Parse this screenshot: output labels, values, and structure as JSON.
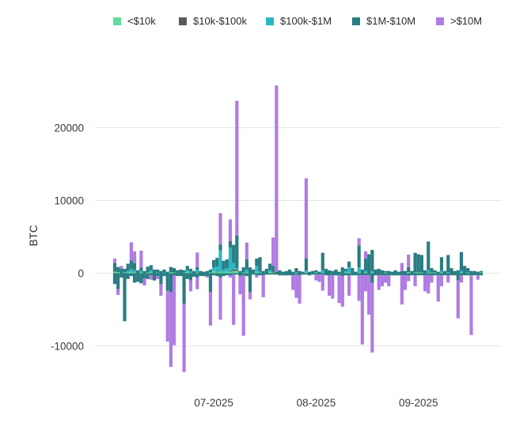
{
  "chart_data": {
    "type": "bar",
    "stacked": true,
    "title": "",
    "xlabel": "",
    "ylabel": "BTC",
    "ylim": [
      -15000,
      26000
    ],
    "y_ticks": [
      -10000,
      0,
      10000,
      20000
    ],
    "x_tick_labels": [
      "07-2025",
      "08-2025",
      "09-2025"
    ],
    "grid": "horizontal",
    "legend_position": "top",
    "series": [
      {
        "name": "<$10k",
        "color": "#5fdc9e"
      },
      {
        "name": "$10k-$100k",
        "color": "#5a5a5a"
      },
      {
        "name": "$100k-$1M",
        "color": "#2ab7c3"
      },
      {
        "name": "$1M-$10M",
        "color": "#2a7d82"
      },
      {
        "name": ">$10M",
        "color": "#b07ce4"
      }
    ],
    "x": [
      "2025-06-01",
      "2025-06-02",
      "2025-06-03",
      "2025-06-04",
      "2025-06-05",
      "2025-06-06",
      "2025-06-07",
      "2025-06-08",
      "2025-06-09",
      "2025-06-10",
      "2025-06-11",
      "2025-06-12",
      "2025-06-13",
      "2025-06-14",
      "2025-06-15",
      "2025-06-16",
      "2025-06-17",
      "2025-06-18",
      "2025-06-19",
      "2025-06-20",
      "2025-06-21",
      "2025-06-22",
      "2025-06-23",
      "2025-06-24",
      "2025-06-25",
      "2025-06-26",
      "2025-06-27",
      "2025-06-28",
      "2025-06-29",
      "2025-06-30",
      "2025-07-01",
      "2025-07-02",
      "2025-07-03",
      "2025-07-04",
      "2025-07-05",
      "2025-07-06",
      "2025-07-07",
      "2025-07-08",
      "2025-07-09",
      "2025-07-10",
      "2025-07-11",
      "2025-07-12",
      "2025-07-13",
      "2025-07-14",
      "2025-07-15",
      "2025-07-16",
      "2025-07-17",
      "2025-07-18",
      "2025-07-19",
      "2025-07-20",
      "2025-07-21",
      "2025-07-22",
      "2025-07-23",
      "2025-07-24",
      "2025-07-25",
      "2025-07-26",
      "2025-07-27",
      "2025-07-28",
      "2025-07-29",
      "2025-07-30",
      "2025-07-31",
      "2025-08-01",
      "2025-08-02",
      "2025-08-03",
      "2025-08-04",
      "2025-08-05",
      "2025-08-06",
      "2025-08-07",
      "2025-08-08",
      "2025-08-09",
      "2025-08-10",
      "2025-08-11",
      "2025-08-12",
      "2025-08-13",
      "2025-08-14",
      "2025-08-15",
      "2025-08-16",
      "2025-08-17",
      "2025-08-18",
      "2025-08-19",
      "2025-08-20",
      "2025-08-21",
      "2025-08-22",
      "2025-08-23",
      "2025-08-24",
      "2025-08-25",
      "2025-08-26",
      "2025-08-27",
      "2025-08-28",
      "2025-08-29",
      "2025-08-30",
      "2025-08-31",
      "2025-09-01",
      "2025-09-02",
      "2025-09-03",
      "2025-09-04",
      "2025-09-05",
      "2025-09-06",
      "2025-09-07",
      "2025-09-08",
      "2025-09-09",
      "2025-09-10",
      "2025-09-11",
      "2025-09-12",
      "2025-09-13",
      "2025-09-14",
      "2025-09-15",
      "2025-09-16",
      "2025-09-17",
      "2025-09-18",
      "2025-09-19",
      "2025-09-20"
    ],
    "positive": [
      [
        200,
        0,
        0,
        1200,
        600
      ],
      [
        150,
        0,
        0,
        700,
        0
      ],
      [
        0,
        0,
        0,
        600,
        400
      ],
      [
        100,
        0,
        0,
        500,
        0
      ],
      [
        100,
        0,
        200,
        1000,
        0
      ],
      [
        200,
        50,
        300,
        1200,
        2500
      ],
      [
        100,
        0,
        300,
        1000,
        1600
      ],
      [
        0,
        0,
        0,
        400,
        0
      ],
      [
        100,
        0,
        200,
        500,
        2300
      ],
      [
        0,
        0,
        0,
        300,
        0
      ],
      [
        100,
        0,
        0,
        800,
        0
      ],
      [
        100,
        0,
        300,
        700,
        0
      ],
      [
        0,
        0,
        0,
        500,
        0
      ],
      [
        0,
        0,
        100,
        400,
        0
      ],
      [
        0,
        0,
        0,
        300,
        0
      ],
      [
        0,
        0,
        100,
        400,
        0
      ],
      [
        0,
        0,
        0,
        200,
        0
      ],
      [
        150,
        0,
        0,
        700,
        0
      ],
      [
        100,
        0,
        0,
        600,
        0
      ],
      [
        0,
        0,
        0,
        400,
        0
      ],
      [
        0,
        0,
        0,
        500,
        0
      ],
      [
        0,
        0,
        100,
        300,
        0
      ],
      [
        200,
        0,
        200,
        600,
        0
      ],
      [
        0,
        0,
        200,
        400,
        0
      ],
      [
        0,
        0,
        0,
        300,
        0
      ],
      [
        100,
        50,
        300,
        400,
        2000
      ],
      [
        0,
        0,
        0,
        300,
        0
      ],
      [
        0,
        0,
        0,
        200,
        0
      ],
      [
        0,
        0,
        0,
        300,
        0
      ],
      [
        100,
        0,
        0,
        400,
        0
      ],
      [
        300,
        0,
        500,
        1000,
        0
      ],
      [
        150,
        50,
        700,
        1200,
        0
      ],
      [
        250,
        100,
        2800,
        800,
        4300
      ],
      [
        100,
        0,
        400,
        1200,
        0
      ],
      [
        200,
        0,
        500,
        1200,
        0
      ],
      [
        200,
        100,
        3200,
        900,
        3000
      ],
      [
        300,
        200,
        900,
        2500,
        0
      ],
      [
        300,
        200,
        200,
        4500,
        18500
      ],
      [
        0,
        0,
        0,
        300,
        0
      ],
      [
        100,
        0,
        0,
        700,
        0
      ],
      [
        100,
        0,
        400,
        1400,
        2300
      ],
      [
        0,
        0,
        0,
        800,
        0
      ],
      [
        0,
        0,
        0,
        500,
        0
      ],
      [
        200,
        0,
        800,
        1000,
        0
      ],
      [
        0,
        0,
        200,
        2000,
        0
      ],
      [
        0,
        0,
        0,
        300,
        0
      ],
      [
        0,
        0,
        0,
        600,
        0
      ],
      [
        200,
        0,
        200,
        900,
        0
      ],
      [
        100,
        100,
        0,
        800,
        3900
      ],
      [
        0,
        0,
        0,
        200,
        25600
      ],
      [
        0,
        0,
        0,
        400,
        0
      ],
      [
        0,
        0,
        0,
        200,
        0
      ],
      [
        0,
        0,
        0,
        300,
        0
      ],
      [
        0,
        0,
        0,
        500,
        0
      ],
      [
        0,
        0,
        0,
        200,
        0
      ],
      [
        100,
        0,
        0,
        600,
        0
      ],
      [
        0,
        0,
        0,
        300,
        0
      ],
      [
        0,
        0,
        0,
        200,
        0
      ],
      [
        150,
        0,
        200,
        1700,
        11000
      ],
      [
        0,
        0,
        0,
        200,
        0
      ],
      [
        0,
        0,
        0,
        300,
        0
      ],
      [
        100,
        0,
        0,
        300,
        0
      ],
      [
        0,
        0,
        0,
        200,
        0
      ],
      [
        100,
        0,
        300,
        2400,
        0
      ],
      [
        0,
        0,
        0,
        600,
        0
      ],
      [
        0,
        0,
        0,
        400,
        0
      ],
      [
        0,
        0,
        0,
        300,
        0
      ],
      [
        0,
        0,
        0,
        500,
        0
      ],
      [
        0,
        0,
        0,
        200,
        0
      ],
      [
        0,
        0,
        0,
        800,
        0
      ],
      [
        100,
        0,
        200,
        300,
        0
      ],
      [
        100,
        0,
        700,
        800,
        0
      ],
      [
        0,
        0,
        0,
        700,
        0
      ],
      [
        0,
        0,
        0,
        200,
        0
      ],
      [
        100,
        0,
        700,
        3000,
        1000
      ],
      [
        0,
        0,
        0,
        500,
        0
      ],
      [
        100,
        0,
        200,
        1700,
        1000
      ],
      [
        0,
        0,
        0,
        2600,
        0
      ],
      [
        100,
        0,
        200,
        2900,
        0
      ],
      [
        0,
        0,
        0,
        500,
        0
      ],
      [
        0,
        0,
        0,
        600,
        0
      ],
      [
        0,
        0,
        0,
        400,
        0
      ],
      [
        100,
        0,
        0,
        200,
        0
      ],
      [
        0,
        0,
        0,
        300,
        0
      ],
      [
        0,
        0,
        0,
        200,
        0
      ],
      [
        0,
        0,
        0,
        400,
        0
      ],
      [
        0,
        0,
        0,
        200,
        0
      ],
      [
        0,
        0,
        0,
        300,
        1100
      ],
      [
        0,
        0,
        0,
        300,
        0
      ],
      [
        150,
        0,
        0,
        700,
        1700
      ],
      [
        0,
        0,
        0,
        300,
        0
      ],
      [
        100,
        0,
        0,
        2700,
        0
      ],
      [
        100,
        0,
        0,
        2500,
        0
      ],
      [
        100,
        0,
        0,
        2400,
        0
      ],
      [
        0,
        0,
        0,
        400,
        0
      ],
      [
        100,
        50,
        300,
        3900,
        0
      ],
      [
        100,
        0,
        0,
        600,
        0
      ],
      [
        100,
        0,
        0,
        300,
        0
      ],
      [
        0,
        0,
        0,
        200,
        0
      ],
      [
        100,
        0,
        200,
        1900,
        0
      ],
      [
        0,
        0,
        0,
        300,
        0
      ],
      [
        100,
        0,
        0,
        2400,
        0
      ],
      [
        0,
        0,
        0,
        700,
        0
      ],
      [
        0,
        0,
        0,
        300,
        0
      ],
      [
        0,
        0,
        0,
        400,
        0
      ],
      [
        100,
        0,
        200,
        2600,
        0
      ],
      [
        0,
        0,
        0,
        1000,
        0
      ],
      [
        100,
        0,
        0,
        600,
        0
      ],
      [
        0,
        0,
        0,
        300,
        0
      ],
      [
        0,
        0,
        0,
        300,
        0
      ],
      [
        0,
        0,
        0,
        200,
        0
      ],
      [
        100,
        0,
        0,
        200,
        0
      ]
    ],
    "negative": [
      [
        0,
        0,
        0,
        1500,
        0
      ],
      [
        0,
        0,
        0,
        2200,
        800
      ],
      [
        0,
        0,
        0,
        600,
        0
      ],
      [
        0,
        0,
        0,
        6600,
        0
      ],
      [
        0,
        0,
        0,
        800,
        0
      ],
      [
        0,
        0,
        0,
        400,
        0
      ],
      [
        0,
        0,
        0,
        1300,
        0
      ],
      [
        0,
        0,
        0,
        1200,
        0
      ],
      [
        0,
        0,
        0,
        1400,
        0
      ],
      [
        0,
        0,
        0,
        700,
        1000
      ],
      [
        0,
        0,
        0,
        800,
        0
      ],
      [
        0,
        0,
        0,
        300,
        600
      ],
      [
        0,
        0,
        0,
        1000,
        0
      ],
      [
        0,
        0,
        0,
        400,
        400
      ],
      [
        0,
        0,
        0,
        1500,
        1600
      ],
      [
        0,
        0,
        0,
        400,
        0
      ],
      [
        0,
        0,
        0,
        2400,
        7000
      ],
      [
        0,
        0,
        0,
        2600,
        10300
      ],
      [
        0,
        0,
        0,
        300,
        9600
      ],
      [
        0,
        0,
        0,
        400,
        0
      ],
      [
        0,
        0,
        0,
        400,
        0
      ],
      [
        0,
        0,
        0,
        4200,
        9400
      ],
      [
        0,
        0,
        0,
        800,
        0
      ],
      [
        0,
        0,
        0,
        1000,
        1500
      ],
      [
        0,
        0,
        0,
        500,
        0
      ],
      [
        0,
        0,
        0,
        600,
        1600
      ],
      [
        0,
        0,
        0,
        400,
        0
      ],
      [
        0,
        0,
        0,
        400,
        0
      ],
      [
        0,
        0,
        0,
        400,
        200
      ],
      [
        0,
        0,
        0,
        2600,
        4600
      ],
      [
        0,
        0,
        0,
        300,
        0
      ],
      [
        0,
        0,
        0,
        400,
        0
      ],
      [
        0,
        0,
        0,
        600,
        5800
      ],
      [
        0,
        0,
        0,
        400,
        0
      ],
      [
        0,
        0,
        0,
        300,
        0
      ],
      [
        0,
        0,
        0,
        300,
        300
      ],
      [
        0,
        0,
        0,
        200,
        6900
      ],
      [
        0,
        0,
        0,
        200,
        0
      ],
      [
        0,
        0,
        0,
        400,
        2500
      ],
      [
        0,
        0,
        0,
        300,
        8300
      ],
      [
        0,
        0,
        0,
        400,
        0
      ],
      [
        0,
        0,
        0,
        2600,
        1000
      ],
      [
        0,
        0,
        0,
        200,
        0
      ],
      [
        0,
        0,
        0,
        300,
        300
      ],
      [
        0,
        0,
        0,
        300,
        0
      ],
      [
        0,
        0,
        0,
        300,
        3000
      ],
      [
        0,
        0,
        0,
        200,
        0
      ],
      [
        0,
        0,
        0,
        200,
        0
      ],
      [
        0,
        0,
        0,
        200,
        0
      ],
      [
        0,
        0,
        0,
        200,
        0
      ],
      [
        0,
        0,
        0,
        300,
        0
      ],
      [
        0,
        0,
        0,
        300,
        0
      ],
      [
        0,
        0,
        0,
        300,
        0
      ],
      [
        0,
        0,
        0,
        300,
        0
      ],
      [
        0,
        0,
        0,
        300,
        2000
      ],
      [
        0,
        0,
        0,
        200,
        3200
      ],
      [
        0,
        0,
        0,
        300,
        3900
      ],
      [
        0,
        0,
        0,
        200,
        0
      ],
      [
        0,
        0,
        0,
        200,
        0
      ],
      [
        0,
        0,
        0,
        300,
        0
      ],
      [
        0,
        0,
        0,
        200,
        0
      ],
      [
        0,
        0,
        0,
        200,
        800
      ],
      [
        0,
        0,
        0,
        200,
        1000
      ],
      [
        0,
        0,
        0,
        200,
        2200
      ],
      [
        0,
        0,
        0,
        300,
        0
      ],
      [
        0,
        0,
        0,
        300,
        2800
      ],
      [
        0,
        0,
        0,
        300,
        3200
      ],
      [
        0,
        0,
        0,
        300,
        0
      ],
      [
        0,
        0,
        0,
        300,
        3800
      ],
      [
        0,
        0,
        0,
        400,
        4200
      ],
      [
        0,
        0,
        0,
        300,
        0
      ],
      [
        0,
        0,
        0,
        300,
        2800
      ],
      [
        0,
        0,
        0,
        300,
        0
      ],
      [
        0,
        0,
        0,
        300,
        0
      ],
      [
        0,
        0,
        0,
        300,
        3500
      ],
      [
        0,
        0,
        0,
        300,
        9500
      ],
      [
        0,
        0,
        0,
        300,
        2200
      ],
      [
        0,
        0,
        0,
        300,
        5400
      ],
      [
        0,
        0,
        0,
        1300,
        9600
      ],
      [
        0,
        0,
        0,
        300,
        0
      ],
      [
        0,
        0,
        0,
        300,
        2000
      ],
      [
        0,
        0,
        0,
        300,
        1500
      ],
      [
        0,
        0,
        0,
        300,
        1000
      ],
      [
        0,
        0,
        0,
        300,
        1500
      ],
      [
        0,
        0,
        0,
        300,
        0
      ],
      [
        0,
        0,
        0,
        300,
        0
      ],
      [
        0,
        0,
        0,
        300,
        0
      ],
      [
        0,
        0,
        0,
        300,
        4000
      ],
      [
        0,
        0,
        0,
        300,
        2000
      ],
      [
        0,
        0,
        0,
        300,
        800
      ],
      [
        0,
        0,
        0,
        300,
        0
      ],
      [
        0,
        0,
        0,
        300,
        1500
      ],
      [
        0,
        0,
        0,
        300,
        0
      ],
      [
        0,
        0,
        0,
        300,
        0
      ],
      [
        0,
        0,
        0,
        300,
        2200
      ],
      [
        0,
        0,
        0,
        300,
        2500
      ],
      [
        0,
        0,
        0,
        300,
        1000
      ],
      [
        0,
        0,
        0,
        300,
        0
      ],
      [
        0,
        0,
        0,
        300,
        3600
      ],
      [
        0,
        0,
        0,
        300,
        1500
      ],
      [
        0,
        0,
        0,
        300,
        0
      ],
      [
        0,
        0,
        0,
        300,
        1000
      ],
      [
        0,
        0,
        0,
        300,
        0
      ],
      [
        0,
        0,
        0,
        300,
        0
      ],
      [
        0,
        0,
        0,
        1000,
        5200
      ],
      [
        0,
        0,
        0,
        300,
        1000
      ],
      [
        0,
        0,
        0,
        300,
        0
      ],
      [
        0,
        0,
        0,
        300,
        0
      ],
      [
        0,
        0,
        0,
        300,
        8200
      ],
      [
        0,
        0,
        0,
        300,
        0
      ],
      [
        0,
        0,
        0,
        300,
        600
      ],
      [
        0,
        0,
        0,
        300,
        0
      ]
    ]
  }
}
